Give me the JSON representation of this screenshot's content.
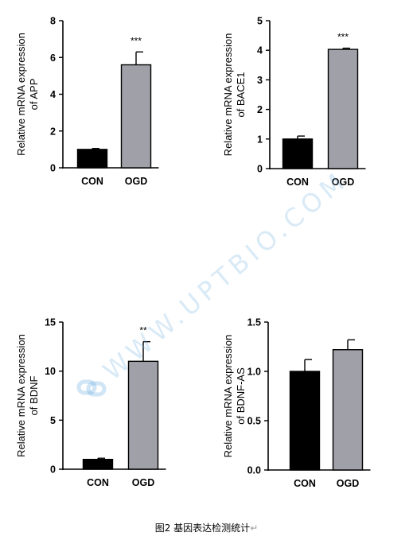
{
  "figure": {
    "caption": "图2 基因表达检测统计",
    "caption_mark": "↵",
    "watermark_text": "WWW.UPTBIO.COM",
    "watermark_icon": "chain-link-logo-icon",
    "watermark_color": "#78b4e1"
  },
  "colors": {
    "con": "#000000",
    "ogd": "#a0a0a8",
    "axis": "#000000"
  },
  "chart_data": [
    {
      "type": "bar",
      "ylabel_line1": "Relative mRNA expression",
      "ylabel_line2": "of APP",
      "categories": [
        "CON",
        "OGD"
      ],
      "values": [
        1.0,
        5.6
      ],
      "errors": [
        0.05,
        0.7
      ],
      "significance": [
        "",
        "***"
      ],
      "ylim": [
        0,
        8
      ],
      "yticks": [
        0,
        2,
        4,
        6,
        8
      ],
      "ytick_labels": [
        "0",
        "2",
        "4",
        "6",
        "8"
      ]
    },
    {
      "type": "bar",
      "ylabel_line1": "Relative mRNA expression",
      "ylabel_line2": "of BACE1",
      "categories": [
        "CON",
        "OGD"
      ],
      "values": [
        1.0,
        4.03
      ],
      "errors": [
        0.1,
        0.04
      ],
      "significance": [
        "",
        "***"
      ],
      "ylim": [
        0,
        5
      ],
      "yticks": [
        0,
        1,
        2,
        3,
        4,
        5
      ],
      "ytick_labels": [
        "0",
        "1",
        "2",
        "3",
        "4",
        "5"
      ]
    },
    {
      "type": "bar",
      "ylabel_line1": "Relative mRNA expression",
      "ylabel_line2": "of BDNF",
      "categories": [
        "CON",
        "OGD"
      ],
      "values": [
        1.0,
        11.0
      ],
      "errors": [
        0.12,
        2.0
      ],
      "significance": [
        "",
        "**"
      ],
      "ylim": [
        0,
        15
      ],
      "yticks": [
        0,
        5,
        10,
        15
      ],
      "ytick_labels": [
        "0",
        "5",
        "10",
        "15"
      ]
    },
    {
      "type": "bar",
      "ylabel_line1": "Relative mRNA expression",
      "ylabel_line2": "of BDNF-AS",
      "categories": [
        "CON",
        "OGD"
      ],
      "values": [
        1.0,
        1.22
      ],
      "errors": [
        0.12,
        0.1
      ],
      "significance": [
        "",
        ""
      ],
      "ylim": [
        0,
        1.5
      ],
      "yticks": [
        0,
        0.5,
        1.0,
        1.5
      ],
      "ytick_labels": [
        "0.0",
        "0.5",
        "1.0",
        "1.5"
      ]
    }
  ]
}
